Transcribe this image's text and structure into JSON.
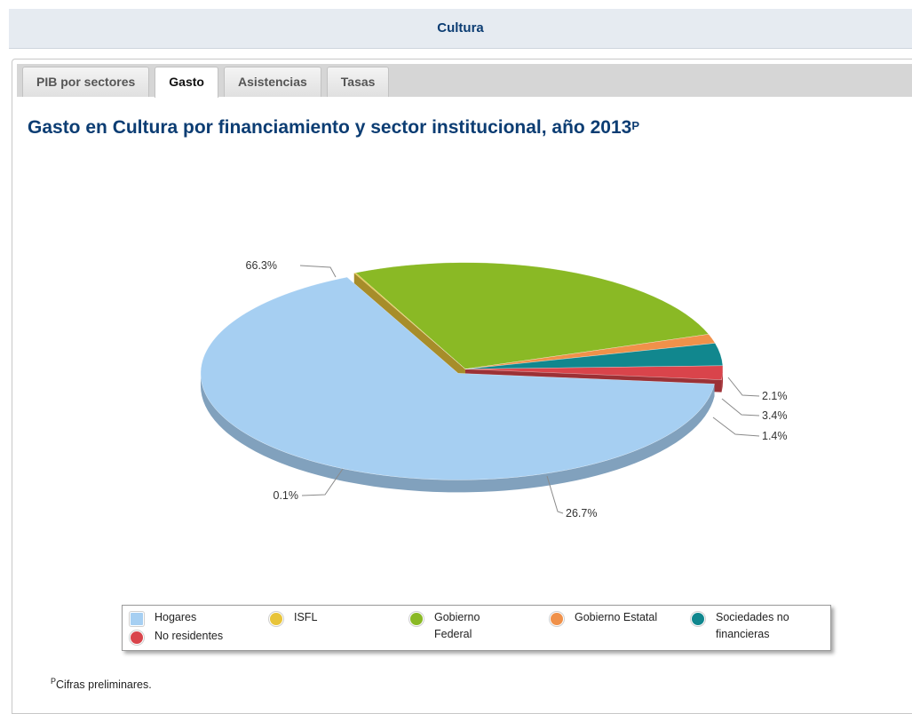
{
  "header": {
    "title": "Cultura"
  },
  "tabs": [
    {
      "label": "PIB por sectores",
      "active": false
    },
    {
      "label": "Gasto",
      "active": true
    },
    {
      "label": "Asistencias",
      "active": false
    },
    {
      "label": "Tasas",
      "active": false
    }
  ],
  "chart_title": {
    "text": "Gasto en Cultura por financiamiento y sector institucional, año 2013",
    "superscript": "P"
  },
  "chart_data": {
    "type": "pie",
    "title": "Gasto en Cultura por financiamiento y sector institucional, año 2013",
    "three_d": true,
    "slices": [
      {
        "name": "Hogares",
        "value": 66.3,
        "label": "66.3%",
        "color": "#a6cff2"
      },
      {
        "name": "ISFL",
        "value": 0.1,
        "label": "0.1%",
        "color": "#e8c43a"
      },
      {
        "name": "Gobierno Federal",
        "value": 26.7,
        "label": "26.7%",
        "color": "#8ab925"
      },
      {
        "name": "Gobierno Estatal",
        "value": 1.4,
        "label": "1.4%",
        "color": "#f0914a"
      },
      {
        "name": "Sociedades no financieras",
        "value": 3.4,
        "label": "3.4%",
        "color": "#11878e"
      },
      {
        "name": "No residentes",
        "value": 2.1,
        "label": "2.1%",
        "color": "#d9444b"
      }
    ],
    "legend_position": "bottom"
  },
  "legend": {
    "items": [
      {
        "label": "Hogares",
        "color": "#a6cff2",
        "icon": "pie-slice-icon"
      },
      {
        "label": "ISFL",
        "color": "#e8c43a",
        "icon": "pie-slice-icon"
      },
      {
        "label": "Gobierno Federal",
        "color": "#8ab925",
        "icon": "pie-slice-icon"
      },
      {
        "label": "Gobierno Estatal",
        "color": "#f0914a",
        "icon": "pie-slice-icon"
      },
      {
        "label": "Sociedades no financieras",
        "color": "#11878e",
        "icon": "pie-slice-icon"
      },
      {
        "label": "No residentes",
        "color": "#d9444b",
        "icon": "pie-slice-icon"
      }
    ]
  },
  "footnote": {
    "superscript": "P",
    "text": "Cifras preliminares."
  }
}
